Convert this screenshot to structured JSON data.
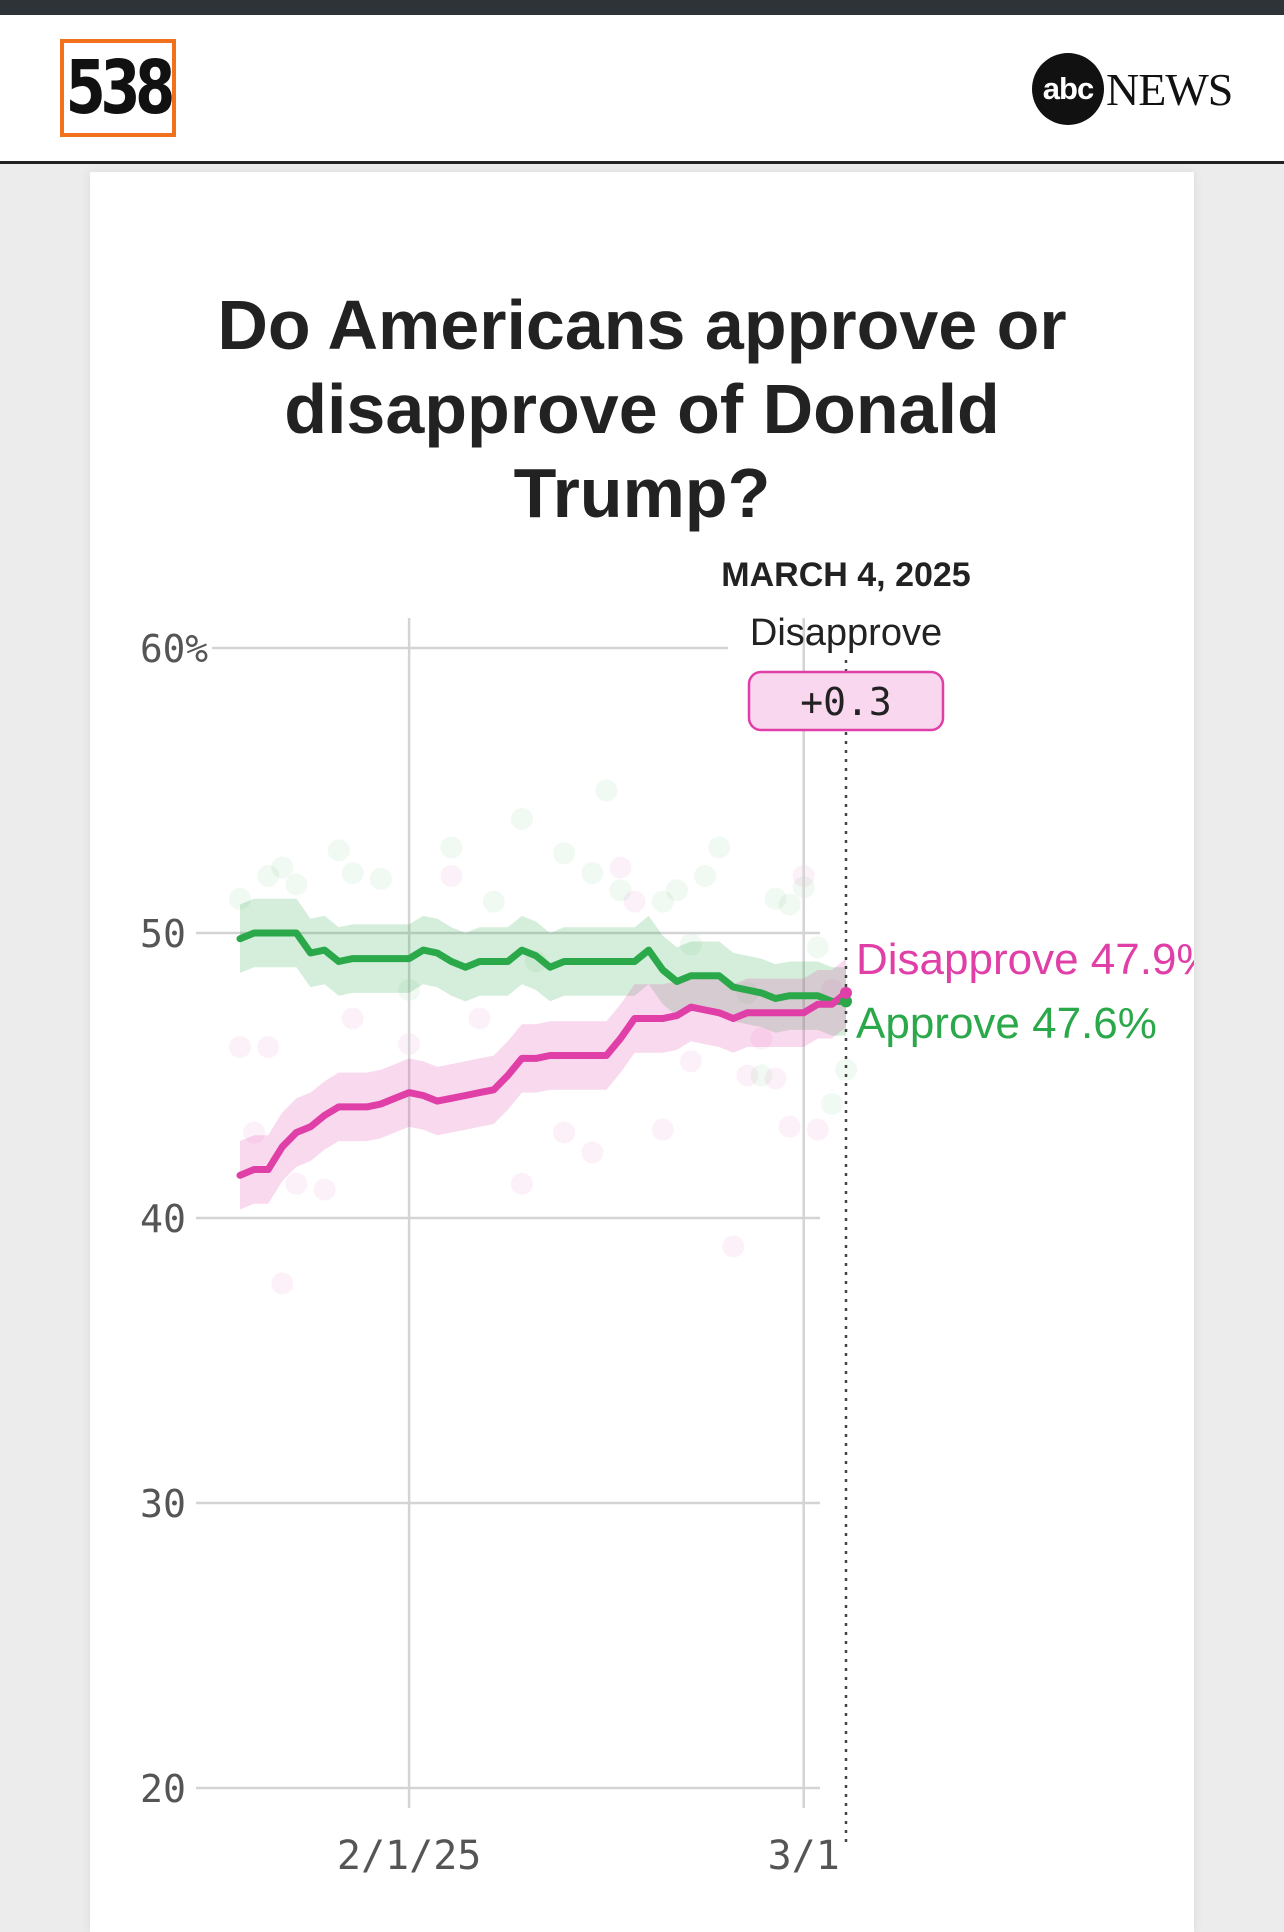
{
  "header": {
    "brand_logo": "538",
    "partner_logo_abc": "abc",
    "partner_logo_news": "NEWS"
  },
  "title": "Do Americans approve or disapprove of Donald Trump?",
  "tooltip": {
    "date": "MARCH 4, 2025",
    "leader": "Disapprove",
    "margin": "+0.3"
  },
  "colors": {
    "approve": "#2aa84a",
    "disapprove": "#e03fa8",
    "grid": "#d4d4d4",
    "text_dark": "#222222",
    "axis_text": "#555555"
  },
  "chart_data": {
    "type": "line",
    "x_axis": {
      "type": "date",
      "range": [
        "2025-01-20",
        "2025-03-04"
      ],
      "tick_labels": [
        [
          "2025-02-01",
          "2/1/25"
        ],
        [
          "2025-03-01",
          "3/1"
        ]
      ]
    },
    "y_axis": {
      "range": [
        20,
        60
      ],
      "ticks": [
        20,
        30,
        40,
        50,
        60
      ],
      "tick_labels": [
        "20",
        "30",
        "40",
        "50",
        "60%"
      ]
    },
    "grid": true,
    "series": [
      {
        "name": "Approve",
        "end_label": "Approve 47.6%",
        "dates": [
          "2025-01-20",
          "2025-01-21",
          "2025-01-22",
          "2025-01-23",
          "2025-01-24",
          "2025-01-25",
          "2025-01-26",
          "2025-01-27",
          "2025-01-28",
          "2025-01-29",
          "2025-01-30",
          "2025-01-31",
          "2025-02-01",
          "2025-02-02",
          "2025-02-03",
          "2025-02-04",
          "2025-02-05",
          "2025-02-06",
          "2025-02-07",
          "2025-02-08",
          "2025-02-09",
          "2025-02-10",
          "2025-02-11",
          "2025-02-12",
          "2025-02-13",
          "2025-02-14",
          "2025-02-15",
          "2025-02-16",
          "2025-02-17",
          "2025-02-18",
          "2025-02-19",
          "2025-02-20",
          "2025-02-21",
          "2025-02-22",
          "2025-02-23",
          "2025-02-24",
          "2025-02-25",
          "2025-02-26",
          "2025-02-27",
          "2025-02-28",
          "2025-03-01",
          "2025-03-02",
          "2025-03-03",
          "2025-03-04"
        ],
        "values": [
          49.8,
          50.0,
          50.0,
          50.0,
          50.0,
          49.3,
          49.4,
          49.0,
          49.1,
          49.1,
          49.1,
          49.1,
          49.1,
          49.4,
          49.3,
          49.0,
          48.8,
          49.0,
          49.0,
          49.0,
          49.4,
          49.2,
          48.8,
          49.0,
          49.0,
          49.0,
          49.0,
          49.0,
          49.0,
          49.4,
          48.7,
          48.3,
          48.5,
          48.5,
          48.5,
          48.1,
          48.0,
          47.9,
          47.7,
          47.8,
          47.8,
          47.8,
          47.6,
          47.6
        ],
        "band": 1.2
      },
      {
        "name": "Disapprove",
        "end_label": "Disapprove 47.9%",
        "dates": [
          "2025-01-20",
          "2025-01-21",
          "2025-01-22",
          "2025-01-23",
          "2025-01-24",
          "2025-01-25",
          "2025-01-26",
          "2025-01-27",
          "2025-01-28",
          "2025-01-29",
          "2025-01-30",
          "2025-01-31",
          "2025-02-01",
          "2025-02-02",
          "2025-02-03",
          "2025-02-04",
          "2025-02-05",
          "2025-02-06",
          "2025-02-07",
          "2025-02-08",
          "2025-02-09",
          "2025-02-10",
          "2025-02-11",
          "2025-02-12",
          "2025-02-13",
          "2025-02-14",
          "2025-02-15",
          "2025-02-16",
          "2025-02-17",
          "2025-02-18",
          "2025-02-19",
          "2025-02-20",
          "2025-02-21",
          "2025-02-22",
          "2025-02-23",
          "2025-02-24",
          "2025-02-25",
          "2025-02-26",
          "2025-02-27",
          "2025-02-28",
          "2025-03-01",
          "2025-03-02",
          "2025-03-03",
          "2025-03-04"
        ],
        "values": [
          41.5,
          41.7,
          41.7,
          42.5,
          43.0,
          43.2,
          43.6,
          43.9,
          43.9,
          43.9,
          44.0,
          44.2,
          44.4,
          44.3,
          44.1,
          44.2,
          44.3,
          44.4,
          44.5,
          45.0,
          45.6,
          45.6,
          45.7,
          45.7,
          45.7,
          45.7,
          45.7,
          46.3,
          47.0,
          47.0,
          47.0,
          47.1,
          47.4,
          47.3,
          47.2,
          47.0,
          47.2,
          47.2,
          47.2,
          47.2,
          47.2,
          47.5,
          47.5,
          47.9
        ],
        "band": 1.2
      }
    ],
    "polls": {
      "approve": [
        [
          "2025-01-20",
          51.2
        ],
        [
          "2025-01-22",
          52.0
        ],
        [
          "2025-01-23",
          52.3
        ],
        [
          "2025-01-24",
          51.7
        ],
        [
          "2025-01-27",
          52.9
        ],
        [
          "2025-01-28",
          52.1
        ],
        [
          "2025-01-30",
          51.9
        ],
        [
          "2025-02-01",
          48.0
        ],
        [
          "2025-02-04",
          53.0
        ],
        [
          "2025-02-07",
          51.1
        ],
        [
          "2025-02-09",
          54.0
        ],
        [
          "2025-02-10",
          49.0
        ],
        [
          "2025-02-12",
          52.8
        ],
        [
          "2025-02-14",
          52.1
        ],
        [
          "2025-02-15",
          55.0
        ],
        [
          "2025-02-16",
          51.5
        ],
        [
          "2025-02-19",
          51.1
        ],
        [
          "2025-02-20",
          51.5
        ],
        [
          "2025-02-21",
          49.6
        ],
        [
          "2025-02-22",
          52.0
        ],
        [
          "2025-02-23",
          53.0
        ],
        [
          "2025-02-25",
          47.9
        ],
        [
          "2025-02-26",
          45.0
        ],
        [
          "2025-02-27",
          51.2
        ],
        [
          "2025-02-28",
          51.0
        ],
        [
          "2025-03-01",
          51.6
        ],
        [
          "2025-03-02",
          49.5
        ],
        [
          "2025-03-03",
          44.0
        ],
        [
          "2025-03-04",
          45.2
        ]
      ],
      "disapprove": [
        [
          "2025-01-20",
          46.0
        ],
        [
          "2025-01-21",
          43.0
        ],
        [
          "2025-01-22",
          46.0
        ],
        [
          "2025-01-23",
          37.7
        ],
        [
          "2025-01-24",
          41.2
        ],
        [
          "2025-01-26",
          41.0
        ],
        [
          "2025-01-28",
          47.0
        ],
        [
          "2025-02-01",
          46.1
        ],
        [
          "2025-02-04",
          52.0
        ],
        [
          "2025-02-06",
          47.0
        ],
        [
          "2025-02-09",
          41.2
        ],
        [
          "2025-02-12",
          43.0
        ],
        [
          "2025-02-14",
          42.3
        ],
        [
          "2025-02-16",
          52.3
        ],
        [
          "2025-02-17",
          51.1
        ],
        [
          "2025-02-19",
          43.1
        ],
        [
          "2025-02-21",
          45.5
        ],
        [
          "2025-02-24",
          39.0
        ],
        [
          "2025-02-25",
          45.0
        ],
        [
          "2025-02-26",
          46.3
        ],
        [
          "2025-02-27",
          44.9
        ],
        [
          "2025-02-28",
          43.2
        ],
        [
          "2025-03-01",
          52.0
        ],
        [
          "2025-03-02",
          43.1
        ],
        [
          "2025-03-03",
          48.0
        ]
      ]
    }
  }
}
